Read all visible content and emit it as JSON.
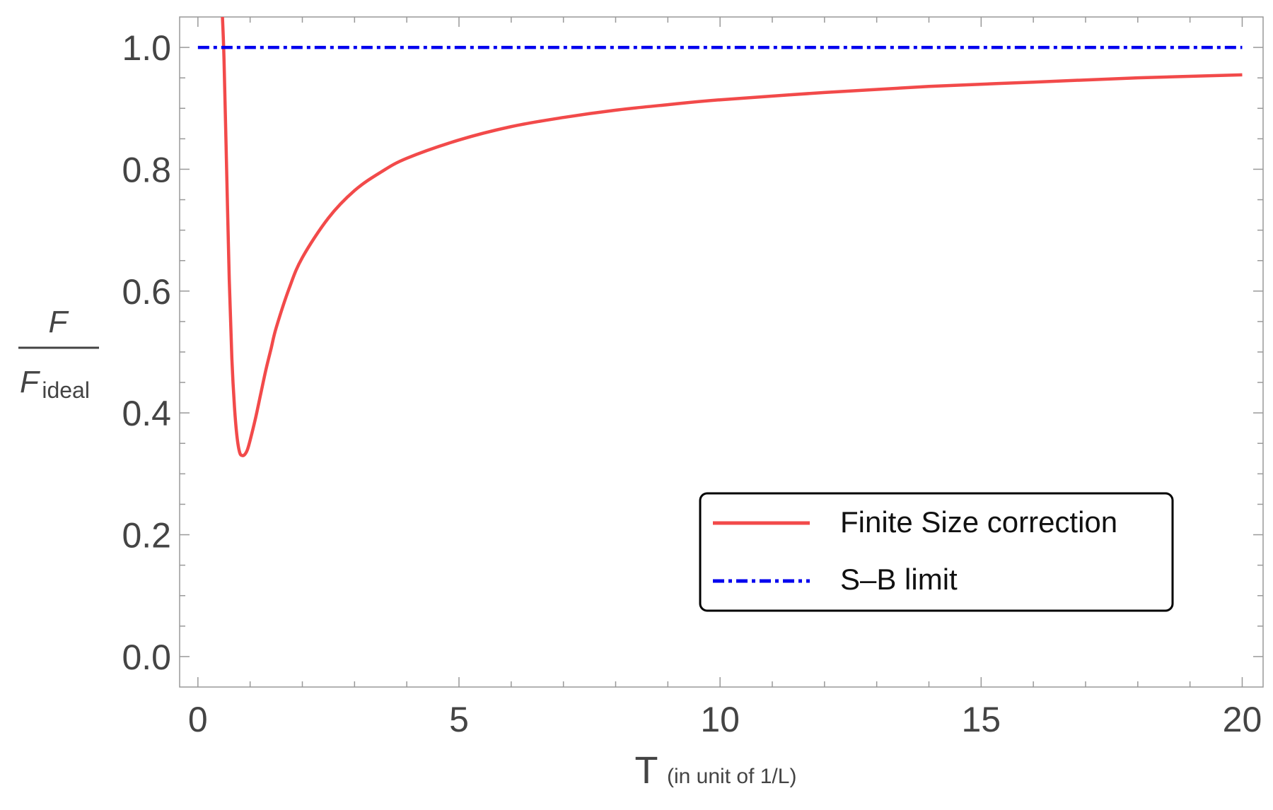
{
  "chart_data": {
    "type": "line",
    "xlabel": {
      "main": "T",
      "sub": "(in unit of 1/L)"
    },
    "ylabel": {
      "numerator": "F",
      "denominator": "F",
      "denominator_sub": "ideal"
    },
    "xlim": [
      -0.35,
      20.4
    ],
    "ylim": [
      -0.05,
      1.05
    ],
    "x_ticks": [
      0,
      5,
      10,
      15,
      20
    ],
    "x_tick_labels": [
      "0",
      "5",
      "10",
      "15",
      "20"
    ],
    "y_ticks": [
      0.0,
      0.2,
      0.4,
      0.6,
      0.8,
      1.0
    ],
    "y_tick_labels": [
      "0.0",
      "0.2",
      "0.4",
      "0.6",
      "0.8",
      "1.0"
    ],
    "grid": false,
    "frame": true,
    "legend": {
      "position": "lower-right"
    },
    "series": [
      {
        "name": "Finite Size correction",
        "color": "#f24a4a",
        "style": "solid",
        "x": [
          0.47,
          0.5,
          0.55,
          0.6,
          0.65,
          0.7,
          0.75,
          0.8,
          0.85,
          0.9,
          0.95,
          1.0,
          1.1,
          1.2,
          1.3,
          1.4,
          1.5,
          1.75,
          2.0,
          2.5,
          3.0,
          3.5,
          4.0,
          5.0,
          6.0,
          7.0,
          8.0,
          9.0,
          10.0,
          12.0,
          14.0,
          16.0,
          18.0,
          20.0
        ],
        "y": [
          1.05,
          0.98,
          0.8,
          0.62,
          0.49,
          0.41,
          0.36,
          0.335,
          0.33,
          0.332,
          0.34,
          0.355,
          0.39,
          0.43,
          0.47,
          0.505,
          0.54,
          0.605,
          0.655,
          0.72,
          0.765,
          0.795,
          0.818,
          0.848,
          0.87,
          0.885,
          0.897,
          0.906,
          0.914,
          0.926,
          0.936,
          0.943,
          0.95,
          0.955
        ]
      },
      {
        "name": "S–B limit",
        "color": "#0000ee",
        "style": "dashdot",
        "x": [
          0,
          20
        ],
        "y": [
          1.0,
          1.0
        ]
      }
    ]
  }
}
